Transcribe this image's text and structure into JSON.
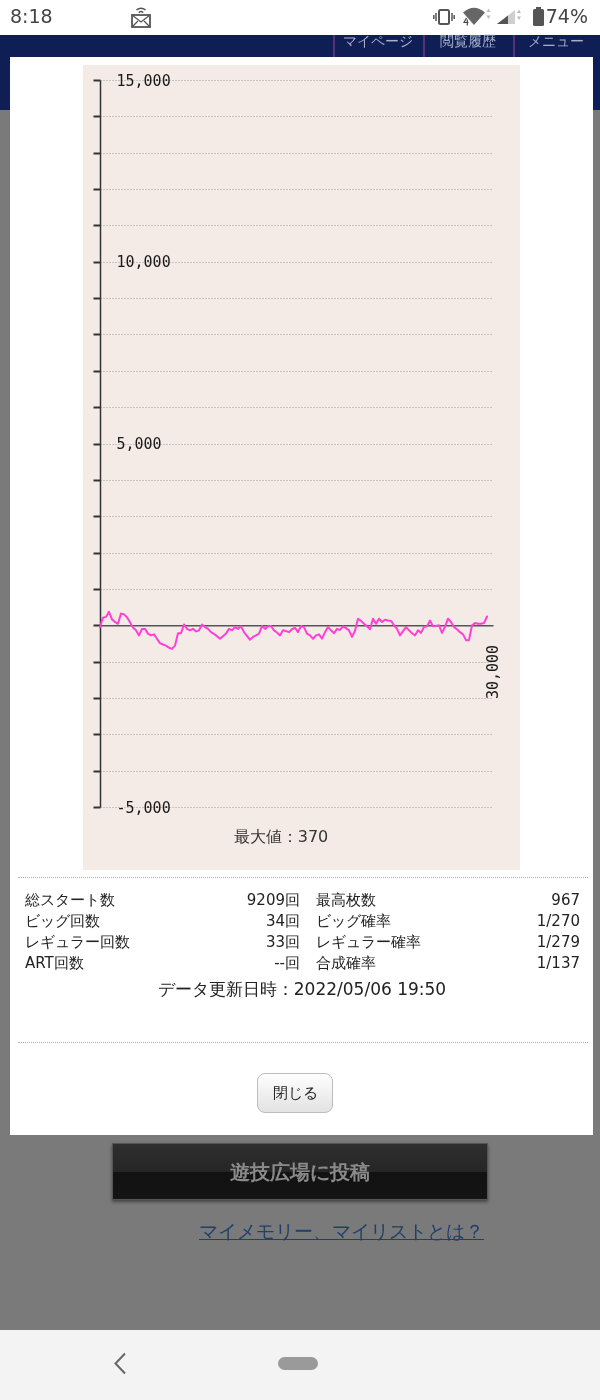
{
  "chart_data": {
    "type": "line",
    "categories": [
      null,
      null,
      null,
      null,
      null,
      null,
      null,
      null,
      null,
      null,
      null,
      null,
      null,
      null,
      null,
      null,
      null,
      null,
      null,
      null,
      null,
      null,
      null,
      null,
      null,
      null,
      null,
      null,
      null,
      null,
      null,
      null,
      null,
      null,
      null,
      null,
      null,
      null,
      null,
      null,
      null,
      null,
      null,
      null,
      null,
      null,
      null,
      null,
      null,
      null,
      null,
      null,
      null,
      null,
      null,
      null,
      null,
      null,
      null,
      null,
      null,
      null,
      null,
      null,
      null,
      null,
      null,
      null,
      null,
      null,
      null,
      null,
      null,
      null,
      null,
      null,
      null,
      null,
      null,
      null,
      null,
      null,
      null,
      null,
      null,
      null,
      null,
      null,
      null,
      null,
      null,
      null,
      null,
      null,
      null,
      null,
      null,
      null,
      null,
      null,
      null,
      null,
      null,
      null,
      null,
      null,
      null,
      null,
      null,
      null,
      null,
      null,
      null,
      null,
      null,
      null,
      null,
      null,
      null,
      null,
      null,
      null,
      null,
      null,
      null,
      null,
      null,
      null,
      null,
      null
    ],
    "values": [
      -50,
      210,
      230,
      370,
      160,
      90,
      40,
      320,
      300,
      220,
      80,
      -60,
      -140,
      -280,
      -100,
      -100,
      -230,
      -280,
      -250,
      -370,
      -490,
      -530,
      -560,
      -620,
      -650,
      -560,
      -220,
      -220,
      20,
      -100,
      -140,
      -100,
      -170,
      -140,
      20,
      -50,
      -100,
      -190,
      -240,
      -300,
      -370,
      -300,
      -230,
      -100,
      -140,
      -50,
      -100,
      -30,
      -190,
      -290,
      -400,
      -320,
      -280,
      -230,
      -20,
      -100,
      -30,
      -20,
      -140,
      -200,
      -280,
      -140,
      -160,
      -190,
      -110,
      -70,
      -190,
      -20,
      -50,
      -230,
      -280,
      -370,
      -280,
      -250,
      -370,
      -190,
      -50,
      -140,
      -220,
      -100,
      -130,
      -30,
      -80,
      -140,
      -320,
      -150,
      180,
      120,
      40,
      -30,
      -110,
      180,
      40,
      180,
      90,
      150,
      130,
      120,
      0,
      -100,
      -280,
      -160,
      -50,
      -140,
      -220,
      -280,
      -140,
      -210,
      -50,
      -30,
      130,
      -30,
      -20,
      0,
      -210,
      -40,
      180,
      90,
      -50,
      -110,
      -190,
      -250,
      -410,
      -410,
      0,
      60,
      40,
      40,
      60,
      240
    ],
    "color": "#ff3fd6",
    "ylim": [
      -5000,
      15000
    ],
    "yticks": [
      {
        "value": -5000,
        "label": "-5,000"
      },
      {
        "value": -4000,
        "label": null
      },
      {
        "value": -3000,
        "label": null
      },
      {
        "value": -2000,
        "label": null
      },
      {
        "value": -1000,
        "label": null
      },
      {
        "value": 0,
        "label": null
      },
      {
        "value": 1000,
        "label": null
      },
      {
        "value": 2000,
        "label": null
      },
      {
        "value": 3000,
        "label": null
      },
      {
        "value": 4000,
        "label": null
      },
      {
        "value": 5000,
        "label": "5,000"
      },
      {
        "value": 6000,
        "label": null
      },
      {
        "value": 7000,
        "label": null
      },
      {
        "value": 8000,
        "label": null
      },
      {
        "value": 9000,
        "label": null
      },
      {
        "value": 10000,
        "label": "10,000"
      },
      {
        "value": 11000,
        "label": null
      },
      {
        "value": 12000,
        "label": null
      },
      {
        "value": 13000,
        "label": null
      },
      {
        "value": 14000,
        "label": null
      },
      {
        "value": 15000,
        "label": "15,000"
      }
    ],
    "grid": "y",
    "annotations": [
      "8:18",
      "74%",
      "マイページ",
      "閲覧履歴",
      "メニュー",
      "30,000",
      "最大値：370",
      "総スタート数",
      "9209回",
      "最高枚数",
      "967",
      "ビッグ回数",
      "34回",
      "ビッグ確率",
      "1/270",
      "レギュラー回数",
      "33回",
      "レギュラー確率",
      "1/279",
      "ART回数",
      "--回",
      "合成確率",
      "1/137",
      "データ更新日時：2022/05/06 19:50",
      "閉じる",
      "遊技広場に投稿",
      "マイメモリー、マイリストとは？"
    ]
  }
}
